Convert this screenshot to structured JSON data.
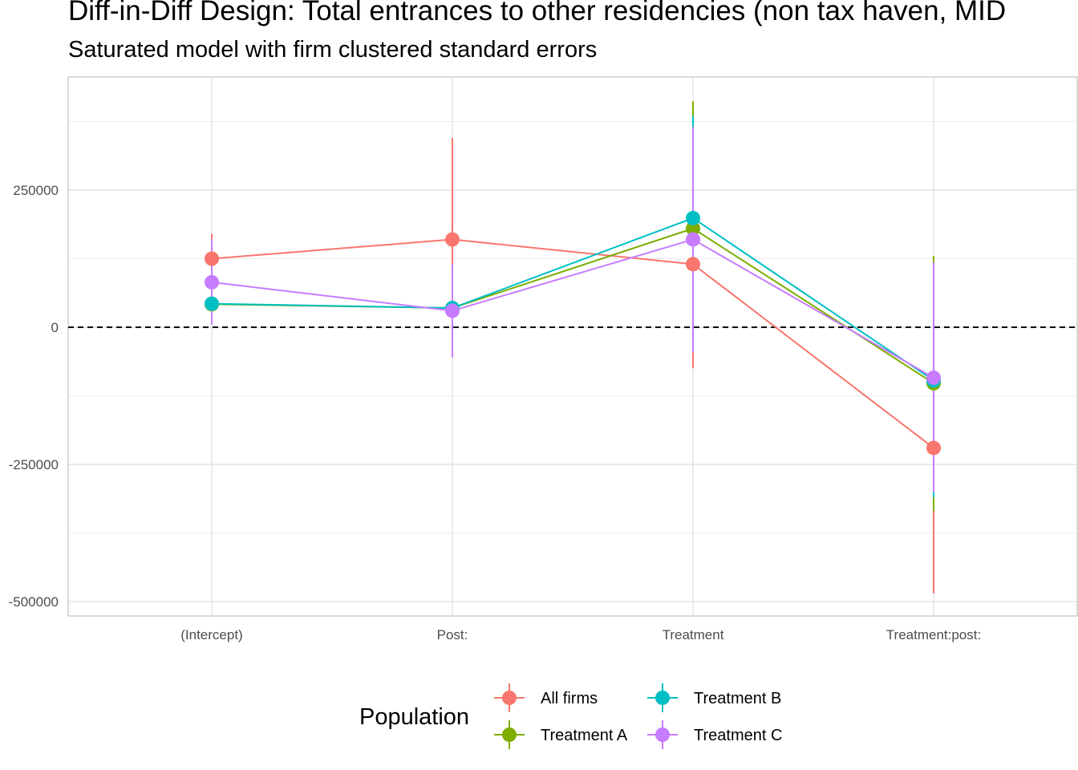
{
  "chart_data": {
    "type": "scatter",
    "title": "Diff-in-Diff Design: Total entrances to other residencies (non tax haven, MID",
    "subtitle": "Saturated model with firm clustered standard errors",
    "xlabel": "",
    "ylabel": "",
    "categories": [
      "(Intercept)",
      "Post:",
      "Treatment",
      "Treatment:post:"
    ],
    "y_ticks": [
      250000,
      0,
      -250000,
      -500000
    ],
    "y_tick_labels": [
      "250000",
      "0",
      "-250000",
      "-500000"
    ],
    "ylim": [
      -525000,
      455000
    ],
    "reference_line": 0,
    "grid": true,
    "legend_title": "Population",
    "legend_position": "bottom",
    "series": [
      {
        "name": "All firms",
        "color": "#F8766D",
        "values": [
          125000,
          160000,
          115000,
          -220000
        ],
        "lower": [
          80000,
          -20000,
          -75000,
          -485000
        ],
        "upper": [
          170000,
          345000,
          305000,
          45000
        ]
      },
      {
        "name": "Treatment A",
        "color": "#7CAE00",
        "values": [
          42000,
          35000,
          180000,
          -102000
        ],
        "lower": [
          5000,
          -10000,
          -45000,
          -335000
        ],
        "upper": [
          79000,
          80000,
          412000,
          130000
        ]
      },
      {
        "name": "Treatment B",
        "color": "#00BFC4",
        "values": [
          43000,
          35000,
          199000,
          -97000
        ],
        "lower": [
          5000,
          -5000,
          10000,
          -310000
        ],
        "upper": [
          81000,
          75000,
          385000,
          118000
        ]
      },
      {
        "name": "Treatment C",
        "color": "#C77CFF",
        "values": [
          82000,
          30000,
          160000,
          -92000
        ],
        "lower": [
          5000,
          -55000,
          -45000,
          -300000
        ],
        "upper": [
          160000,
          115000,
          365000,
          118000
        ]
      }
    ]
  }
}
